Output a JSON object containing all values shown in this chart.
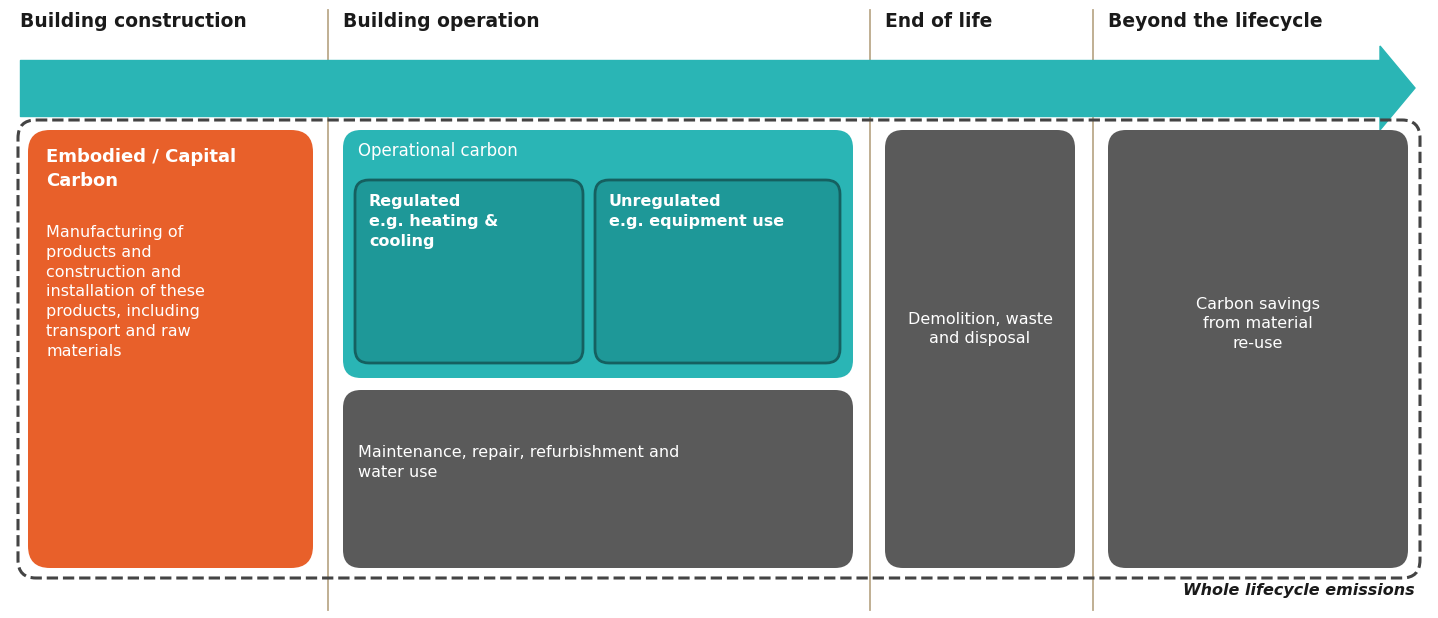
{
  "bg_color": "#ffffff",
  "arrow_color": "#2ab5b5",
  "divider_color": "#bba98a",
  "section_labels": [
    "Building construction",
    "Building operation",
    "End of life",
    "Beyond the lifecycle"
  ],
  "section_label_fontsize": 13.5,
  "outer_box_color": "#444444",
  "embodied_color": "#e8602a",
  "teal_outer": "#2ab5b5",
  "teal_inner": "#1e9898",
  "gray_box": "#5a5a5a",
  "white_text": "#ffffff",
  "black_text": "#1a1a1a",
  "embodied_title": "Embodied / Capital\nCarbon",
  "embodied_body": "Manufacturing of\nproducts and\nconstruction and\ninstallation of these\nproducts, including\ntransport and raw\nmaterials",
  "op_title": "Operational carbon",
  "reg_title": "Regulated\ne.g. heating &\ncooling",
  "unreg_title": "Unregulated\ne.g. equipment use",
  "maint_text": "Maintenance, repair, refurbishment and\nwater use",
  "eol_text": "Demolition, waste\nand disposal",
  "beyond_text": "Carbon savings\nfrom material\nre-use",
  "wle_text": "Whole lifecycle emissions"
}
